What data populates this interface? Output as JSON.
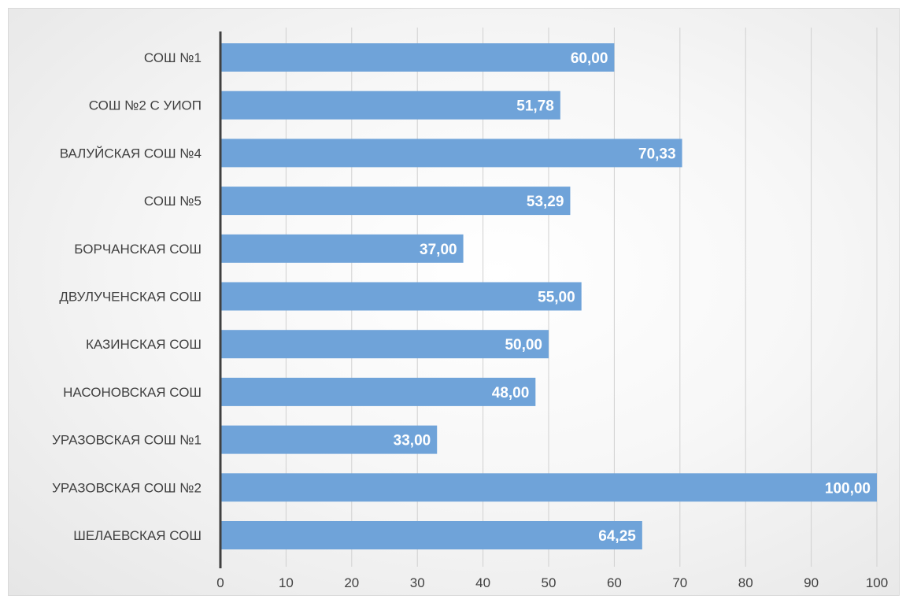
{
  "chart_data": {
    "type": "bar",
    "orientation": "horizontal",
    "categories": [
      "СОШ №1",
      "СОШ №2 С УИОП",
      "ВАЛУЙСКАЯ СОШ №4",
      "СОШ №5",
      "БОРЧАНСКАЯ СОШ",
      "ДВУЛУЧЕНСКАЯ СОШ",
      "КАЗИНСКАЯ СОШ",
      "НАСОНОВСКАЯ СОШ",
      "УРАЗОВСКАЯ СОШ №1",
      "УРАЗОВСКАЯ СОШ №2",
      "ШЕЛАЕВСКАЯ СОШ"
    ],
    "values": [
      60.0,
      51.78,
      70.33,
      53.29,
      37.0,
      55.0,
      50.0,
      48.0,
      33.0,
      100.0,
      64.25
    ],
    "data_labels": [
      "60,00",
      "51,78",
      "70,33",
      "53,29",
      "37,00",
      "55,00",
      "50,00",
      "48,00",
      "33,00",
      "100,00",
      "64,25"
    ],
    "xlim": [
      0,
      100
    ],
    "x_ticks": [
      "0",
      "10",
      "20",
      "30",
      "40",
      "50",
      "60",
      "70",
      "80",
      "90",
      "100"
    ],
    "title": "",
    "xlabel": "",
    "ylabel": "",
    "grid": "vertical",
    "legend": "none",
    "colors": {
      "bar": "#6fa3d9",
      "grid": "#d0d0d0",
      "axis": "#404040",
      "label": "#404040"
    }
  }
}
